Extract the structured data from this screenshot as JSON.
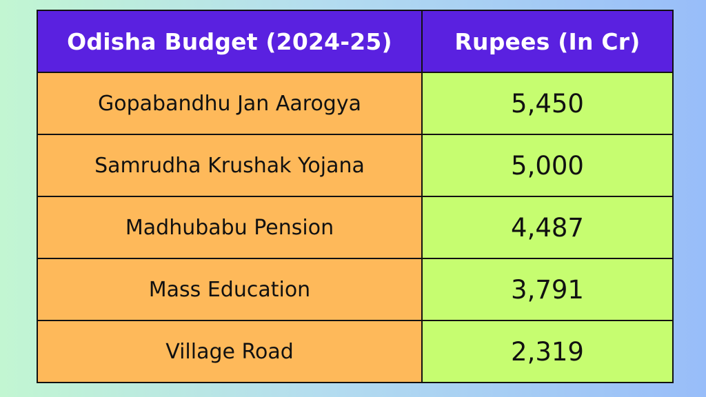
{
  "chart_data": {
    "type": "table",
    "columns": [
      "Odisha Budget (2024-25)",
      "Rupees (In Cr)"
    ],
    "rows": [
      {
        "label": "Gopabandhu Jan Aarogya",
        "value": "5,450"
      },
      {
        "label": "Samrudha Krushak Yojana",
        "value": "5,000"
      },
      {
        "label": "Madhubabu Pension",
        "value": "4,487"
      },
      {
        "label": "Mass Education",
        "value": "3,791"
      },
      {
        "label": "Village Road",
        "value": "2,319"
      }
    ],
    "colors": {
      "header_bg": "#5a21e0",
      "header_text": "#ffffff",
      "label_cell_bg": "#feb95a",
      "value_cell_bg": "#c6fd70",
      "border": "#111111"
    }
  }
}
